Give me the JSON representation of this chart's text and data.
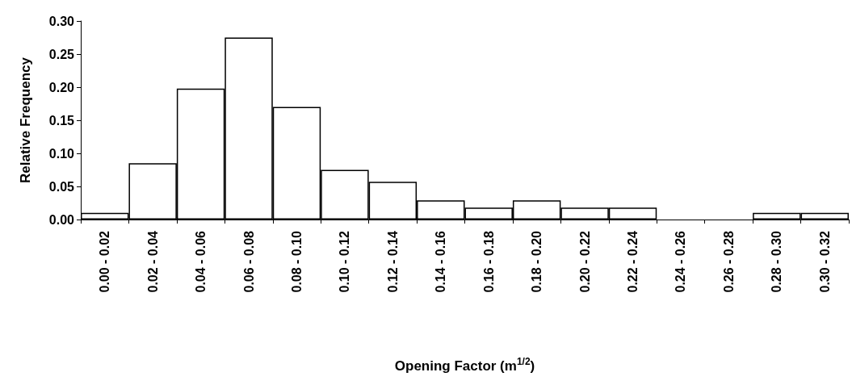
{
  "chart_data": {
    "type": "bar",
    "xlabel": "Opening Factor (m$^{1/2}$)",
    "ylabel": "Relative Frequency",
    "categories": [
      "0.00 - 0.02",
      "0.02 - 0.04",
      "0.04 - 0.06",
      "0.06 - 0.08",
      "0.08 - 0.10",
      "0.10 - 0.12",
      "0.12 - 0.14",
      "0.14 - 0.16",
      "0.16 - 0.18",
      "0.18 - 0.20",
      "0.20 - 0.22",
      "0.22 - 0.24",
      "0.24 - 0.26",
      "0.26 - 0.28",
      "0.28 - 0.30",
      "0.30 - 0.32"
    ],
    "values": [
      0.01,
      0.085,
      0.198,
      0.275,
      0.17,
      0.075,
      0.057,
      0.029,
      0.018,
      0.029,
      0.018,
      0.018,
      0,
      0,
      0.01,
      0.01
    ],
    "color": "#ffffff",
    "ylim": [
      0,
      0.3
    ],
    "yticks": [
      {
        "value": 0,
        "label": "0.00"
      },
      {
        "value": 0.05,
        "label": "0.05"
      },
      {
        "value": 0.1,
        "label": "0.10"
      },
      {
        "value": 0.15,
        "label": "0.15"
      },
      {
        "value": 0.2,
        "label": "0.20"
      },
      {
        "value": 0.25,
        "label": "0.25"
      },
      {
        "value": 0.3,
        "label": "0.30"
      }
    ],
    "grid": false
  }
}
